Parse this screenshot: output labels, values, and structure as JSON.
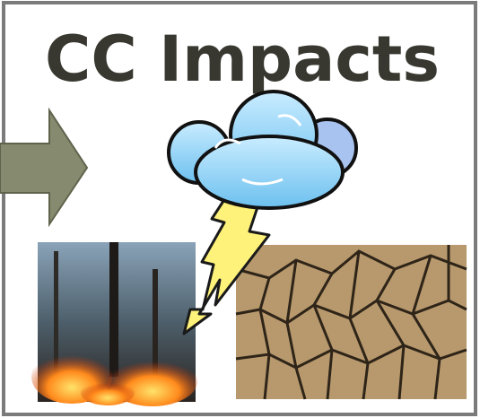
{
  "title": "CC Impacts"
}
